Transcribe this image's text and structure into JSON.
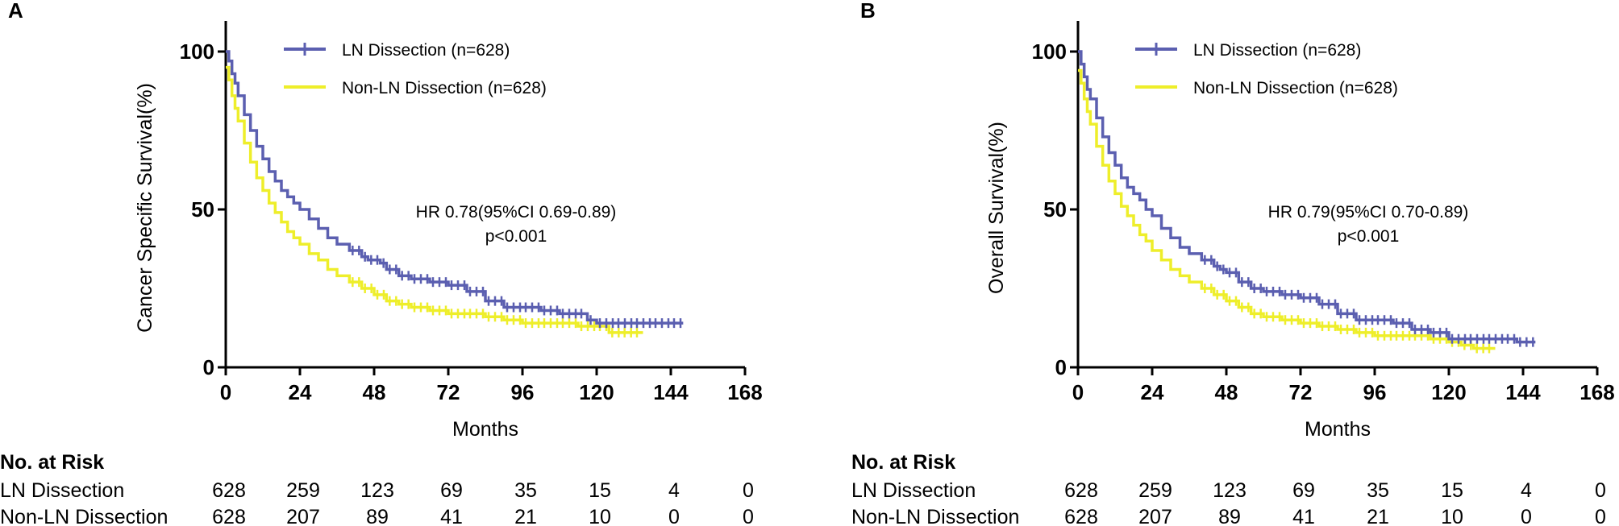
{
  "colors": {
    "ln": "#5b5fb0",
    "nonln": "#eeee2a",
    "axis": "#000000"
  },
  "risk_title": "No. at Risk",
  "chart_data": [
    {
      "panel": "A",
      "type": "line",
      "xlabel": "Months",
      "ylabel": "Cancer Specific Survival(%)",
      "xlim": [
        0,
        168
      ],
      "ylim": [
        0,
        100
      ],
      "xticks": [
        0,
        24,
        48,
        72,
        96,
        120,
        144,
        168
      ],
      "yticks": [
        0,
        50,
        100
      ],
      "annotation": [
        "HR 0.78(95%CI 0.69-0.89)",
        "p<0.001"
      ],
      "series": [
        {
          "key": "ln",
          "name": "LN Dissection (n=628)",
          "x": [
            0,
            1,
            2,
            3,
            4,
            6,
            8,
            10,
            12,
            14,
            16,
            18,
            20,
            22,
            24,
            27,
            30,
            33,
            36,
            40,
            44,
            46,
            48,
            50,
            52,
            56,
            60,
            66,
            72,
            78,
            84,
            90,
            96,
            102,
            108,
            114,
            117,
            120,
            126,
            132,
            138,
            144,
            148
          ],
          "y": [
            100,
            97,
            93,
            90,
            86,
            80,
            75,
            70,
            66,
            62,
            59,
            56,
            54,
            52,
            50,
            47,
            44,
            41,
            39,
            37,
            35,
            34,
            34,
            33,
            31,
            29,
            28,
            27,
            26,
            24,
            21,
            19,
            19,
            18,
            17,
            17,
            15,
            14,
            14,
            14,
            14,
            14,
            14
          ],
          "risk_label": "LN Dissection",
          "at_risk": [
            628,
            259,
            123,
            69,
            35,
            15,
            4,
            0
          ]
        },
        {
          "key": "nonln",
          "name": "Non-LN Dissection (n=628)",
          "x": [
            0,
            1,
            2,
            3,
            4,
            6,
            8,
            10,
            12,
            14,
            16,
            18,
            20,
            22,
            24,
            27,
            30,
            33,
            36,
            40,
            44,
            48,
            52,
            56,
            60,
            66,
            72,
            78,
            84,
            90,
            96,
            102,
            108,
            114,
            120,
            124,
            128,
            132,
            135
          ],
          "y": [
            95,
            91,
            86,
            82,
            78,
            71,
            65,
            60,
            56,
            52,
            49,
            46,
            43,
            41,
            39,
            36,
            34,
            31,
            29,
            27,
            25,
            23,
            21,
            20,
            19,
            18,
            17,
            17,
            16,
            15,
            14,
            14,
            14,
            13,
            13,
            11,
            11,
            11,
            11
          ],
          "risk_label": "Non-LN Dissection",
          "at_risk": [
            628,
            207,
            89,
            41,
            21,
            10,
            0,
            0
          ]
        }
      ]
    },
    {
      "panel": "B",
      "type": "line",
      "xlabel": "Months",
      "ylabel": "Overall Survival(%)",
      "xlim": [
        0,
        168
      ],
      "ylim": [
        0,
        100
      ],
      "xticks": [
        0,
        24,
        48,
        72,
        96,
        120,
        144,
        168
      ],
      "yticks": [
        0,
        50,
        100
      ],
      "annotation": [
        "HR 0.79(95%CI 0.70-0.89)",
        "p<0.001"
      ],
      "series": [
        {
          "key": "ln",
          "name": "LN Dissection (n=628)",
          "x": [
            0,
            1,
            2,
            3,
            4,
            6,
            8,
            10,
            12,
            14,
            16,
            18,
            20,
            22,
            24,
            27,
            30,
            33,
            36,
            40,
            44,
            46,
            48,
            52,
            56,
            60,
            66,
            72,
            78,
            84,
            90,
            96,
            102,
            108,
            114,
            120,
            126,
            132,
            138,
            142,
            148
          ],
          "y": [
            100,
            96,
            92,
            88,
            85,
            79,
            73,
            68,
            64,
            60,
            57,
            55,
            53,
            50,
            48,
            44,
            41,
            38,
            36,
            34,
            32,
            31,
            30,
            27,
            25,
            24,
            23,
            22,
            20,
            17,
            15,
            15,
            14,
            12,
            11,
            9,
            9,
            9,
            9,
            8,
            8
          ],
          "risk_label": "LN Dissection",
          "at_risk": [
            628,
            259,
            123,
            69,
            35,
            15,
            4,
            0
          ]
        },
        {
          "key": "nonln",
          "name": "Non-LN Dissection (n=628)",
          "x": [
            0,
            1,
            2,
            3,
            4,
            6,
            8,
            10,
            12,
            14,
            16,
            18,
            20,
            22,
            24,
            27,
            30,
            33,
            36,
            40,
            44,
            48,
            52,
            56,
            60,
            66,
            72,
            78,
            84,
            90,
            96,
            102,
            108,
            114,
            120,
            124,
            128,
            132,
            135
          ],
          "y": [
            94,
            90,
            85,
            81,
            77,
            70,
            64,
            59,
            55,
            51,
            48,
            45,
            42,
            40,
            37,
            34,
            31,
            29,
            27,
            25,
            23,
            21,
            19,
            17,
            16,
            15,
            14,
            13,
            12,
            11,
            10,
            10,
            10,
            9,
            8,
            7,
            6,
            6,
            6
          ],
          "risk_label": "Non-LN Dissection",
          "at_risk": [
            628,
            207,
            89,
            41,
            21,
            10,
            0,
            0
          ]
        }
      ]
    }
  ]
}
